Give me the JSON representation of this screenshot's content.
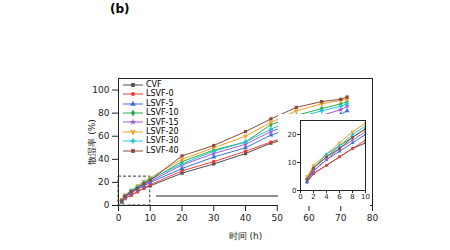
{
  "chart_data": [
    {
      "type": "line",
      "title": "(b)",
      "x_label": "时间 (h)",
      "y_label": "散湿率 (%)",
      "x": [
        1,
        2,
        4,
        6,
        8,
        10,
        20,
        30,
        40,
        48,
        56,
        64,
        70,
        72
      ],
      "xlim": [
        0,
        80
      ],
      "xticks": [
        0,
        10,
        20,
        30,
        40,
        50,
        60,
        70,
        80
      ],
      "ylim": [
        0,
        110
      ],
      "yticks": [
        0,
        20,
        40,
        60,
        80,
        100
      ],
      "grid": false,
      "legend": "top-left",
      "series": [
        {
          "name": "CVF",
          "color": "#4d4d4d",
          "marker": "square",
          "values": [
            3,
            6,
            9,
            12,
            15,
            17,
            28,
            36,
            45,
            54,
            60,
            64,
            70,
            73
          ]
        },
        {
          "name": "LSVF-0",
          "color": "#e8413c",
          "marker": "circle",
          "values": [
            3,
            6,
            9,
            12,
            15,
            18,
            30,
            38,
            47,
            55,
            62,
            70,
            75,
            77
          ]
        },
        {
          "name": "LSVF-5",
          "color": "#3d6fe0",
          "marker": "triangle",
          "values": [
            3,
            7,
            11,
            14,
            17,
            20,
            32,
            42,
            50,
            61,
            68,
            75,
            79,
            82
          ]
        },
        {
          "name": "LSVF-10",
          "color": "#2aa84a",
          "marker": "diamond",
          "values": [
            4,
            8,
            12,
            16,
            19,
            22,
            38,
            48,
            55,
            70,
            78,
            84,
            88,
            90
          ]
        },
        {
          "name": "LSVF-15",
          "color": "#a05ad8",
          "marker": "star",
          "values": [
            4,
            7,
            11,
            15,
            18,
            21,
            35,
            45,
            53,
            64,
            72,
            78,
            83,
            86
          ]
        },
        {
          "name": "LSVF-20",
          "color": "#f0a020",
          "marker": "wye",
          "values": [
            5,
            9,
            13,
            17,
            21,
            24,
            40,
            50,
            60,
            72,
            82,
            88,
            91,
            92
          ]
        },
        {
          "name": "LSVF-30",
          "color": "#22c4d4",
          "marker": "cross",
          "values": [
            4,
            8,
            13,
            16,
            20,
            23,
            36,
            47,
            55,
            66,
            76,
            82,
            86,
            88
          ]
        },
        {
          "name": "LSVF-40",
          "color": "#8a4a3a",
          "marker": "square",
          "values": [
            4,
            8,
            12,
            15,
            19,
            22,
            43,
            52,
            64,
            75,
            85,
            90,
            92,
            94
          ]
        }
      ]
    },
    {
      "type": "line",
      "x": [
        1,
        2,
        4,
        6,
        8,
        10
      ],
      "xlim": [
        0,
        10
      ],
      "xticks": [
        0,
        2,
        4,
        6,
        8,
        10
      ],
      "ylim": [
        0,
        25
      ],
      "yticks": [
        0,
        10,
        20
      ],
      "grid": false,
      "series": [
        {
          "name": "CVF",
          "color": "#4d4d4d",
          "marker": "square",
          "values": [
            3,
            6,
            9,
            12,
            15,
            17
          ]
        },
        {
          "name": "LSVF-0",
          "color": "#e8413c",
          "marker": "circle",
          "values": [
            3,
            6,
            9,
            12,
            15,
            18
          ]
        },
        {
          "name": "LSVF-5",
          "color": "#3d6fe0",
          "marker": "triangle",
          "values": [
            3,
            7,
            11,
            14,
            17,
            20
          ]
        },
        {
          "name": "LSVF-10",
          "color": "#2aa84a",
          "marker": "diamond",
          "values": [
            4,
            8,
            12,
            16,
            19,
            22
          ]
        },
        {
          "name": "LSVF-15",
          "color": "#a05ad8",
          "marker": "star",
          "values": [
            4,
            7,
            11,
            15,
            18,
            21
          ]
        },
        {
          "name": "LSVF-20",
          "color": "#f0a020",
          "marker": "wye",
          "values": [
            5,
            9,
            13,
            17,
            21,
            24
          ]
        },
        {
          "name": "LSVF-30",
          "color": "#22c4d4",
          "marker": "cross",
          "values": [
            4,
            8,
            13,
            16,
            20,
            23
          ]
        },
        {
          "name": "LSVF-40",
          "color": "#8a4a3a",
          "marker": "square",
          "values": [
            4,
            8,
            12,
            15,
            19,
            22
          ]
        }
      ]
    }
  ]
}
